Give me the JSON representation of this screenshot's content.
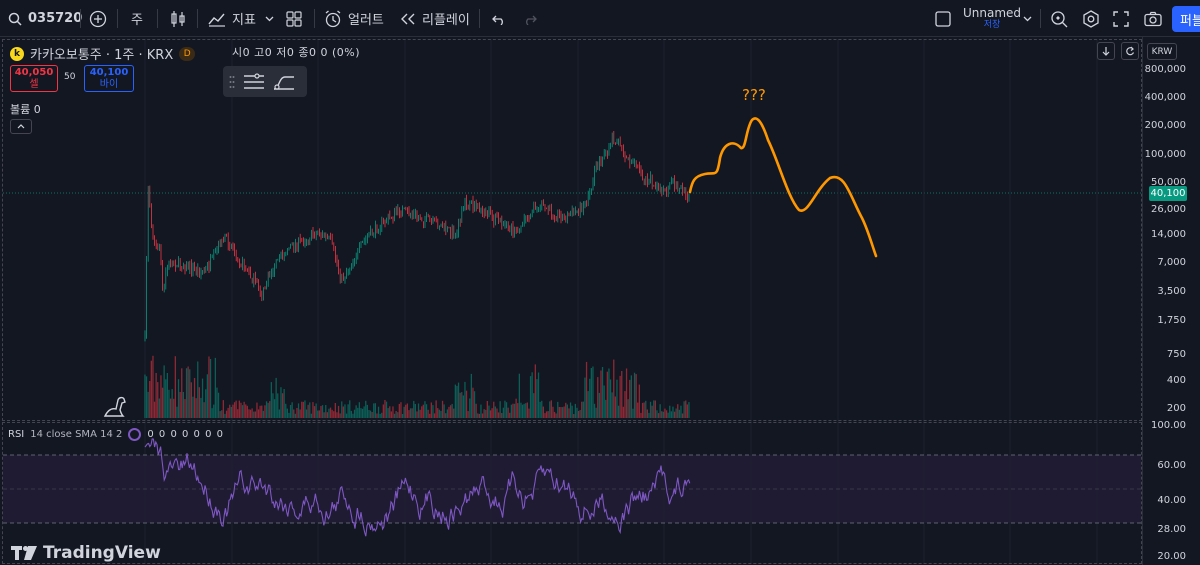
{
  "toolbar": {
    "symbol": "035720",
    "interval": "주",
    "indicators_label": "지표",
    "alert_label": "얼러트",
    "replay_label": "리플레이",
    "layout_name": "Unnamed",
    "layout_status": "저장",
    "publish_label": "퍼블"
  },
  "legend": {
    "logo_letter": "k",
    "title": "카카오보통주 · 1주 · KRX",
    "d_badge": "D",
    "ohlc": "시0 고0 저0 종0 0 (0%)"
  },
  "trade": {
    "sell_price": "40,050",
    "sell_label": "셀",
    "spread": "50",
    "buy_price": "40,100",
    "buy_label": "바이"
  },
  "volume_label": "볼륨 0",
  "rsi_legend": {
    "name": "RSI",
    "params": "14 close SMA 14 2",
    "values": "0 0 0 0 0 0 0"
  },
  "price_scale": {
    "currency": "KRW",
    "labels": [
      "800,000",
      "400,000",
      "200,000",
      "100,000",
      "50,000",
      "26,000",
      "14,000",
      "7,000",
      "3,500",
      "1,750",
      "750",
      "400",
      "200"
    ],
    "current_price": "40,100",
    "rsi_labels": [
      "100.00",
      "60.00",
      "40.00",
      "28.00",
      "20.00"
    ]
  },
  "annotation": "???",
  "brand": "TradingView",
  "colors": {
    "background": "#131722",
    "up": "#089981",
    "down": "#f23645",
    "rsi": "#7e57c2",
    "annotation": "#ff9800",
    "accent": "#2962ff"
  }
}
